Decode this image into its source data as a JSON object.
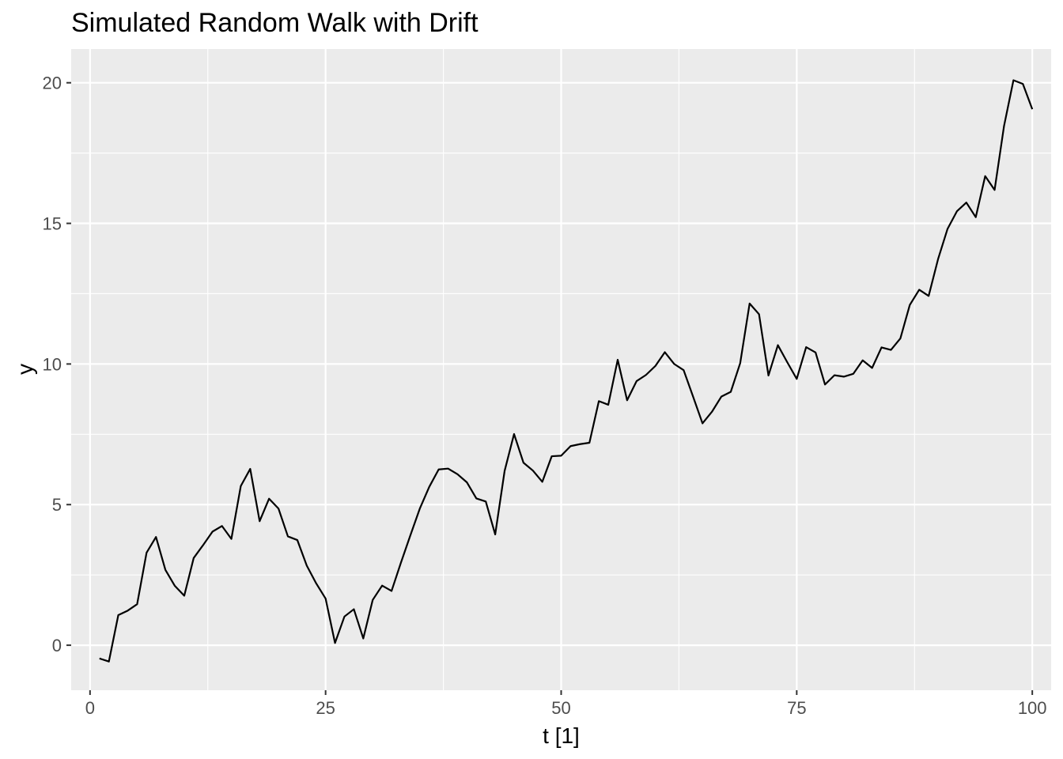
{
  "chart_data": {
    "type": "line",
    "title": "Simulated Random Walk with Drift",
    "xlabel": "t [1]",
    "ylabel": "y",
    "xlim": [
      -2,
      102
    ],
    "ylim": [
      -1.6,
      21.2
    ],
    "x_ticks": [
      0,
      25,
      50,
      75,
      100
    ],
    "x_tick_labels": [
      "0",
      "25",
      "50",
      "75",
      "100"
    ],
    "y_ticks": [
      0,
      5,
      10,
      15,
      20
    ],
    "y_tick_labels": [
      "0",
      "5",
      "10",
      "15",
      "20"
    ],
    "x_minor": [
      12.5,
      37.5,
      62.5,
      87.5
    ],
    "y_minor": [
      2.5,
      7.5,
      12.5,
      17.5
    ],
    "grid": true,
    "panel_color": "#ebebeb",
    "grid_color": "#ffffff",
    "line_color": "#000000",
    "series": [
      {
        "x": [
          1,
          2,
          3,
          4,
          5,
          6,
          7,
          8,
          9,
          10,
          11,
          12,
          13,
          14,
          15,
          16,
          17,
          18,
          19,
          20,
          21,
          22,
          23,
          24,
          25,
          26,
          27,
          28,
          29,
          30,
          31,
          32,
          33,
          34,
          35,
          36,
          37,
          38,
          39,
          40,
          41,
          42,
          43,
          44,
          45,
          46,
          47,
          48,
          49,
          50,
          51,
          52,
          53,
          54,
          55,
          56,
          57,
          58,
          59,
          60,
          61,
          62,
          63,
          64,
          65,
          66,
          67,
          68,
          69,
          70,
          71,
          72,
          73,
          74,
          75,
          76,
          77,
          78,
          79,
          80,
          81,
          82,
          83,
          84,
          85,
          86,
          87,
          88,
          89,
          90,
          91,
          92,
          93,
          94,
          95,
          96,
          97,
          98,
          99,
          100
        ],
        "values": [
          -0.47,
          -0.58,
          1.07,
          1.23,
          1.46,
          3.29,
          3.85,
          2.68,
          2.11,
          1.76,
          3.1,
          3.56,
          4.04,
          4.24,
          3.78,
          5.66,
          6.27,
          4.41,
          5.21,
          4.86,
          3.87,
          3.74,
          2.83,
          2.2,
          1.66,
          0.08,
          1.02,
          1.28,
          0.24,
          1.61,
          2.12,
          1.93,
          2.94,
          3.91,
          4.86,
          5.63,
          6.25,
          6.28,
          6.08,
          5.79,
          5.22,
          5.11,
          3.94,
          6.2,
          7.51,
          6.49,
          6.21,
          5.81,
          6.72,
          6.74,
          7.08,
          7.15,
          7.2,
          8.68,
          8.55,
          10.15,
          8.71,
          9.39,
          9.61,
          9.93,
          10.42,
          10.0,
          9.78,
          8.84,
          7.89,
          8.3,
          8.84,
          9.01,
          10.03,
          12.15,
          11.77,
          9.59,
          10.67,
          10.06,
          9.47,
          10.6,
          10.41,
          9.27,
          9.6,
          9.55,
          9.65,
          10.13,
          9.86,
          10.59,
          10.5,
          10.91,
          12.1,
          12.64,
          12.42,
          13.73,
          14.8,
          15.43,
          15.74,
          15.22,
          16.68,
          16.19,
          18.46,
          20.09,
          19.96,
          19.06
        ]
      }
    ]
  }
}
